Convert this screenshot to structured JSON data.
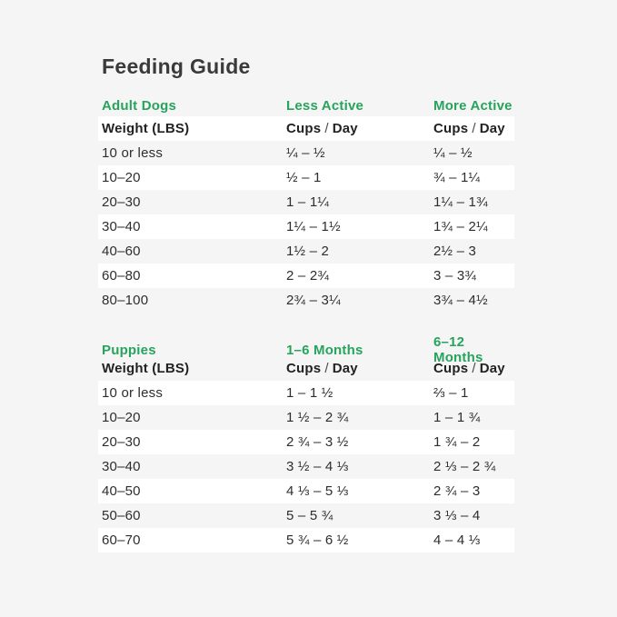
{
  "page": {
    "title": "Feeding Guide",
    "background_color": "#f5f5f6",
    "stripe_color": "#ffffff",
    "accent_green": "#27a35c",
    "title_color": "#3a3a3a",
    "text_color": "#2d2d2d"
  },
  "labels": {
    "weight_header": "Weight (LBS)",
    "cups": "Cups",
    "slash": "/",
    "day": "Day"
  },
  "chart_data": [
    {
      "type": "table",
      "section": "Adult Dogs",
      "col2": "Less Active",
      "col3": "More Active",
      "columns": [
        "Weight (LBS)",
        "Less Active Cups / Day",
        "More Active Cups / Day"
      ],
      "rows": [
        {
          "weight": "10 or less",
          "col2": "¼ – ½",
          "col3": "¼ – ½"
        },
        {
          "weight": "10–20",
          "col2": "½ – 1",
          "col3": "¾ – 1¼"
        },
        {
          "weight": "20–30",
          "col2": "1 – 1¼",
          "col3": "1¼ – 1¾"
        },
        {
          "weight": "30–40",
          "col2": "1¼ – 1½",
          "col3": "1¾ – 2¼"
        },
        {
          "weight": "40–60",
          "col2": "1½ – 2",
          "col3": "2½ – 3"
        },
        {
          "weight": "60–80",
          "col2": "2 – 2¾",
          "col3": "3 – 3¾"
        },
        {
          "weight": "80–100",
          "col2": "2¾ – 3¼",
          "col3": "3¾ – 4½"
        }
      ]
    },
    {
      "type": "table",
      "section": "Puppies",
      "col2": "1–6 Months",
      "col3": "6–12 Months",
      "columns": [
        "Weight (LBS)",
        "1-6 Months Cups / Day",
        "6-12 Months Cups / Day"
      ],
      "rows": [
        {
          "weight": "10 or less",
          "col2": "1 – 1 ½",
          "col3": "⅔ – 1"
        },
        {
          "weight": "10–20",
          "col2": "1 ½ – 2 ¾",
          "col3": "1 – 1 ¾"
        },
        {
          "weight": "20–30",
          "col2": "2 ¾ – 3 ½",
          "col3": "1 ¾ – 2"
        },
        {
          "weight": "30–40",
          "col2": "3 ½ – 4 ⅓",
          "col3": "2 ⅓ – 2 ¾"
        },
        {
          "weight": "40–50",
          "col2": "4 ⅓ – 5 ⅓",
          "col3": "2 ¾ – 3"
        },
        {
          "weight": "50–60",
          "col2": "5 – 5 ¾",
          "col3": "3 ⅓ – 4"
        },
        {
          "weight": "60–70",
          "col2": "5 ¾ – 6 ½",
          "col3": "4 – 4 ⅓"
        }
      ]
    }
  ]
}
